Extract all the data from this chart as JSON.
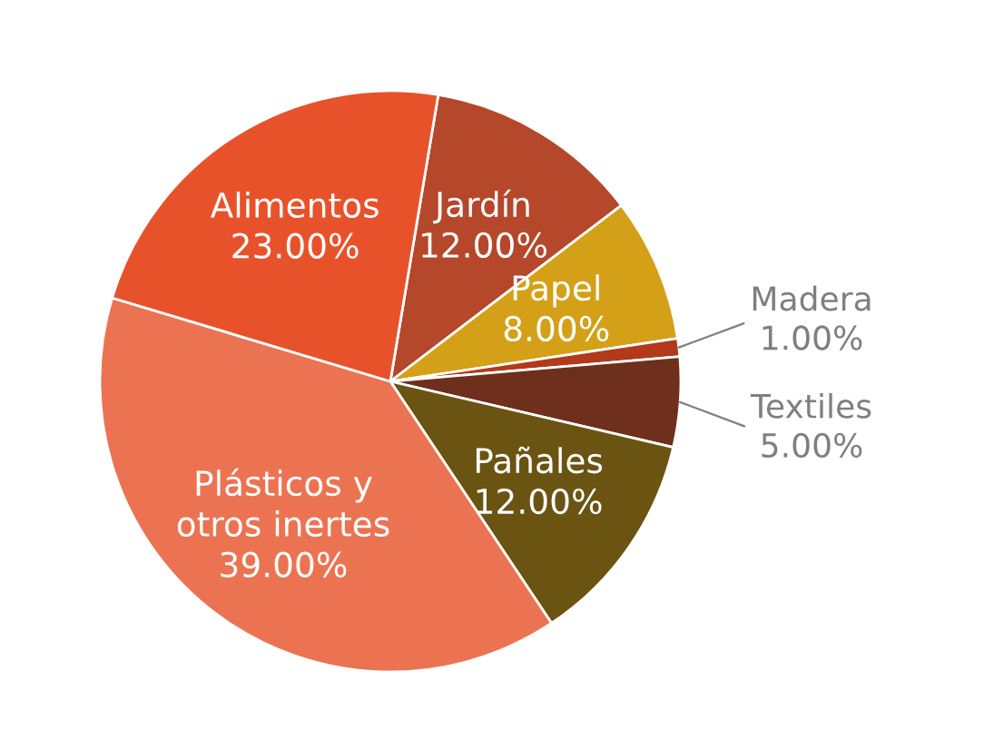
{
  "chart_data": {
    "type": "pie",
    "categories": [
      "Jardín",
      "Papel",
      "Madera",
      "Textiles",
      "Pañales",
      "Plásticos y\notros inertes",
      "Alimentos"
    ],
    "values": [
      12,
      8,
      1,
      5,
      12,
      39,
      23
    ],
    "colors": [
      "#b5472b",
      "#d4a017",
      "#b03a1a",
      "#6e2f1c",
      "#6b5312",
      "#ec7352",
      "#e8522b"
    ],
    "value_labels": [
      "12.00%",
      "8.00%",
      "1.00%",
      "5.00%",
      "12.00%",
      "39.00%",
      "23.00%"
    ]
  }
}
